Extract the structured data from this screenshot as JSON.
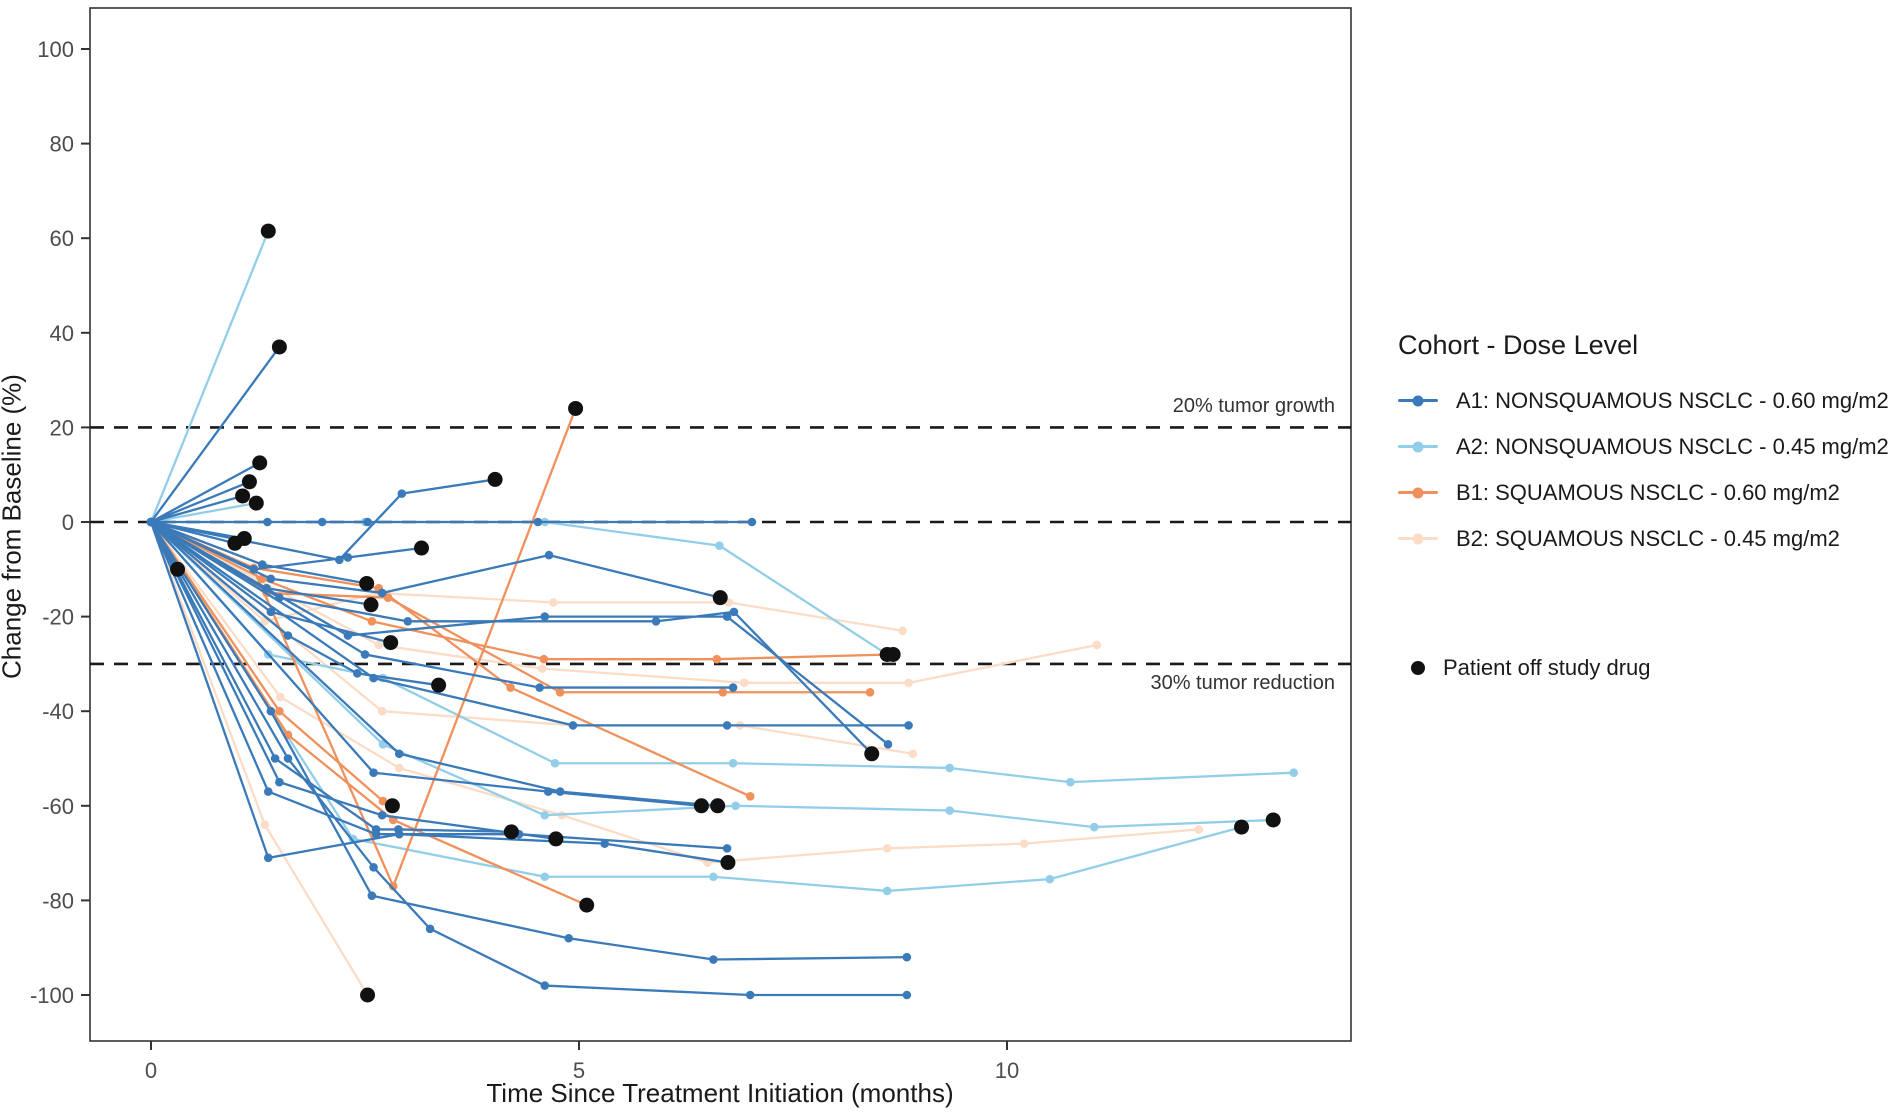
{
  "chart_data": {
    "type": "line",
    "title": "",
    "xlabel": "Time Since Treatment Initiation (months)",
    "ylabel": "Change from Baseline (%)",
    "x_ticks": [
      0,
      5,
      10
    ],
    "y_ticks": [
      -100,
      -80,
      -60,
      -40,
      -20,
      0,
      20,
      40,
      60,
      80,
      100
    ],
    "xlim": [
      -0.7,
      14.0
    ],
    "ylim": [
      -110,
      109
    ],
    "grid": false,
    "legend_position": "right",
    "reference_lines": [
      {
        "y": 20,
        "label": "20% tumor growth"
      },
      {
        "y": 0,
        "label": ""
      },
      {
        "y": -30,
        "label": "30% tumor reduction"
      }
    ],
    "annotations": {
      "growth": "20% tumor growth",
      "reduction": "30% tumor reduction"
    },
    "cohorts": {
      "A1": {
        "label": "A1: NONSQUAMOUS NSCLC - 0.60 mg/m2",
        "color": "#3B7AB9"
      },
      "A2": {
        "label": "A2: NONSQUAMOUS NSCLC - 0.45 mg/m2",
        "color": "#92CEE8"
      },
      "B1": {
        "label": "B1: SQUAMOUS NSCLC - 0.60 mg/m2",
        "color": "#F0915C"
      },
      "B2": {
        "label": "B2: SQUAMOUS NSCLC - 0.45 mg/m2",
        "color": "#FBDCC6"
      }
    },
    "off_study": {
      "label": "Patient off study drug",
      "color": "#111111"
    },
    "series": [
      {
        "cohort": "B2",
        "end": "dot",
        "points": [
          [
            0,
            0
          ],
          [
            1.33,
            -64
          ],
          [
            2.53,
            -100
          ]
        ]
      },
      {
        "cohort": "B2",
        "end": "marker",
        "points": [
          [
            0,
            0
          ],
          [
            1.33,
            -21
          ],
          [
            2.64,
            -15
          ],
          [
            4.7,
            -17
          ],
          [
            6.75,
            -17
          ],
          [
            8.78,
            -23
          ]
        ]
      },
      {
        "cohort": "B2",
        "end": "marker",
        "points": [
          [
            0,
            0
          ],
          [
            2.66,
            -26
          ],
          [
            4.57,
            -31
          ],
          [
            6.93,
            -34
          ],
          [
            8.85,
            -34
          ],
          [
            11.05,
            -26
          ]
        ]
      },
      {
        "cohort": "B2",
        "end": "marker",
        "points": [
          [
            0,
            0
          ],
          [
            2.7,
            -40
          ],
          [
            4.93,
            -43
          ],
          [
            6.88,
            -43
          ],
          [
            8.9,
            -49
          ]
        ]
      },
      {
        "cohort": "B2",
        "end": "marker",
        "points": [
          [
            0,
            0
          ],
          [
            1.51,
            -37
          ],
          [
            2.9,
            -52
          ],
          [
            4.8,
            -62
          ],
          [
            6.5,
            -72
          ],
          [
            8.6,
            -69
          ],
          [
            10.2,
            -68
          ],
          [
            12.24,
            -65
          ]
        ]
      },
      {
        "cohort": "A2",
        "end": "dot",
        "points": [
          [
            0,
            0
          ],
          [
            1.37,
            61.5
          ]
        ]
      },
      {
        "cohort": "A2",
        "end": "dot",
        "points": [
          [
            0,
            0
          ],
          [
            1.23,
            4
          ]
        ]
      },
      {
        "cohort": "A2",
        "end": "dot",
        "points": [
          [
            0,
            0
          ],
          [
            2.5,
            0
          ],
          [
            4.6,
            0
          ],
          [
            6.64,
            -5
          ],
          [
            8.6,
            -28
          ]
        ]
      },
      {
        "cohort": "A2",
        "end": "marker",
        "points": [
          [
            0,
            0
          ],
          [
            1.37,
            -28
          ],
          [
            2.71,
            -33
          ],
          [
            4.72,
            -51
          ],
          [
            6.8,
            -51
          ],
          [
            9.33,
            -52
          ],
          [
            10.74,
            -55
          ],
          [
            13.35,
            -53
          ]
        ]
      },
      {
        "cohort": "A2",
        "end": "dot",
        "points": [
          [
            0,
            0
          ],
          [
            2.71,
            -47
          ],
          [
            4.6,
            -62
          ],
          [
            6.83,
            -60
          ],
          [
            9.33,
            -61
          ],
          [
            11.02,
            -64.5
          ],
          [
            13.11,
            -63
          ]
        ]
      },
      {
        "cohort": "A2",
        "end": "dot",
        "points": [
          [
            0,
            0
          ],
          [
            2.36,
            -67
          ],
          [
            4.6,
            -75
          ],
          [
            6.57,
            -75
          ],
          [
            8.6,
            -78
          ],
          [
            10.5,
            -75.5
          ],
          [
            12.74,
            -64.5
          ]
        ]
      },
      {
        "cohort": "B1",
        "end": "dot",
        "points": [
          [
            0,
            0
          ],
          [
            1.2,
            -10
          ],
          [
            2.83,
            -77
          ],
          [
            4.96,
            24
          ]
        ]
      },
      {
        "cohort": "B1",
        "end": "dot",
        "points": [
          [
            0,
            0
          ],
          [
            1.3,
            -12
          ],
          [
            2.58,
            -21
          ],
          [
            4.59,
            -29
          ],
          [
            6.61,
            -29
          ],
          [
            8.67,
            -28
          ]
        ]
      },
      {
        "cohort": "B1",
        "end": "marker",
        "points": [
          [
            0,
            0
          ],
          [
            1.35,
            -15
          ],
          [
            2.77,
            -16
          ],
          [
            4.78,
            -36
          ],
          [
            6.68,
            -36
          ],
          [
            8.4,
            -36
          ]
        ]
      },
      {
        "cohort": "B1",
        "end": "marker",
        "points": [
          [
            0,
            0
          ],
          [
            1.2,
            -9.7
          ],
          [
            2.66,
            -14
          ],
          [
            4.2,
            -35
          ],
          [
            7.0,
            -58
          ]
        ]
      },
      {
        "cohort": "B1",
        "end": "dot",
        "points": [
          [
            0,
            0
          ],
          [
            1.5,
            -40
          ],
          [
            2.71,
            -59
          ],
          [
            2.82,
            -60
          ]
        ]
      },
      {
        "cohort": "B1",
        "end": "dot",
        "points": [
          [
            0,
            0
          ],
          [
            1.6,
            -45
          ],
          [
            2.83,
            -63
          ],
          [
            5.09,
            -81
          ]
        ]
      },
      {
        "cohort": "A1",
        "end": "dot",
        "points": [
          [
            0,
            0
          ],
          [
            1.5,
            37
          ]
        ]
      },
      {
        "cohort": "A1",
        "end": "dot",
        "points": [
          [
            0,
            0
          ],
          [
            1.27,
            12.5
          ]
        ]
      },
      {
        "cohort": "A1",
        "end": "dot",
        "points": [
          [
            0,
            0
          ],
          [
            1.15,
            8.5
          ]
        ]
      },
      {
        "cohort": "A1",
        "end": "dot",
        "points": [
          [
            0,
            0
          ],
          [
            1.07,
            5.5
          ]
        ]
      },
      {
        "cohort": "A1",
        "end": "dot",
        "points": [
          [
            0,
            0
          ],
          [
            0.31,
            -10
          ]
        ]
      },
      {
        "cohort": "A1",
        "end": "dot",
        "points": [
          [
            0,
            0
          ],
          [
            0.98,
            -4.5
          ]
        ]
      },
      {
        "cohort": "A1",
        "end": "dot",
        "points": [
          [
            0,
            0
          ],
          [
            1.09,
            -3.5
          ]
        ]
      },
      {
        "cohort": "A1",
        "end": "dot",
        "points": [
          [
            0,
            0
          ],
          [
            1.2,
            -10
          ],
          [
            2.3,
            -7.5
          ],
          [
            3.16,
            -5.5
          ]
        ]
      },
      {
        "cohort": "A1",
        "end": "marker",
        "points": [
          [
            0,
            0
          ],
          [
            1.36,
            0
          ],
          [
            2.0,
            0
          ],
          [
            2.53,
            0
          ],
          [
            4.52,
            0
          ],
          [
            7.02,
            0
          ]
        ]
      },
      {
        "cohort": "A1",
        "end": "dot",
        "points": [
          [
            0,
            0
          ],
          [
            2.2,
            -8
          ],
          [
            2.93,
            6
          ],
          [
            4.02,
            9
          ]
        ]
      },
      {
        "cohort": "A1",
        "end": "dot",
        "points": [
          [
            0,
            0
          ],
          [
            1.3,
            -9
          ],
          [
            2.52,
            -13
          ]
        ]
      },
      {
        "cohort": "A1",
        "end": "dot",
        "points": [
          [
            0,
            0
          ],
          [
            1.35,
            -14
          ],
          [
            2.57,
            -17.5
          ]
        ]
      },
      {
        "cohort": "A1",
        "end": "dot",
        "points": [
          [
            0,
            0
          ],
          [
            1.4,
            -19
          ],
          [
            2.8,
            -25.5
          ]
        ]
      },
      {
        "cohort": "A1",
        "end": "dot",
        "points": [
          [
            0,
            0
          ],
          [
            1.6,
            -24
          ],
          [
            2.41,
            -32
          ],
          [
            3.36,
            -34.5
          ]
        ]
      },
      {
        "cohort": "A1",
        "end": "dot",
        "points": [
          [
            0,
            0
          ],
          [
            1.4,
            -12
          ],
          [
            2.7,
            -15
          ],
          [
            4.65,
            -7
          ],
          [
            6.65,
            -16
          ]
        ]
      },
      {
        "cohort": "A1",
        "end": "dot",
        "points": [
          [
            0,
            0
          ],
          [
            1.5,
            -16
          ],
          [
            3.0,
            -21
          ],
          [
            5.9,
            -21
          ],
          [
            6.81,
            -19
          ],
          [
            8.42,
            -49
          ]
        ]
      },
      {
        "cohort": "A1",
        "end": "marker",
        "points": [
          [
            0,
            0
          ],
          [
            2.3,
            -24
          ],
          [
            4.6,
            -20
          ],
          [
            6.73,
            -20
          ],
          [
            8.61,
            -47
          ]
        ]
      },
      {
        "cohort": "A1",
        "end": "marker",
        "points": [
          [
            0,
            0
          ],
          [
            2.5,
            -28
          ],
          [
            4.54,
            -35
          ],
          [
            6.8,
            -35
          ]
        ]
      },
      {
        "cohort": "A1",
        "end": "marker",
        "points": [
          [
            0,
            0
          ],
          [
            2.6,
            -33
          ],
          [
            4.93,
            -43
          ],
          [
            6.73,
            -43
          ],
          [
            8.85,
            -43
          ]
        ]
      },
      {
        "cohort": "A1",
        "end": "dot",
        "points": [
          [
            0,
            0
          ],
          [
            2.6,
            -53
          ],
          [
            4.64,
            -57
          ],
          [
            6.43,
            -60
          ]
        ]
      },
      {
        "cohort": "A1",
        "end": "dot",
        "points": [
          [
            0,
            0
          ],
          [
            2.9,
            -49
          ],
          [
            4.78,
            -57
          ],
          [
            6.62,
            -60
          ]
        ]
      },
      {
        "cohort": "A1",
        "end": "dot",
        "points": [
          [
            0,
            0
          ],
          [
            1.45,
            -50
          ],
          [
            2.63,
            -65
          ],
          [
            2.89,
            -65
          ],
          [
            4.21,
            -65.5
          ]
        ]
      },
      {
        "cohort": "A1",
        "end": "dot",
        "points": [
          [
            0,
            0
          ],
          [
            1.5,
            -55
          ],
          [
            2.7,
            -62
          ],
          [
            4.73,
            -67
          ]
        ]
      },
      {
        "cohort": "A1",
        "end": "marker",
        "points": [
          [
            0,
            0
          ],
          [
            1.37,
            -57
          ],
          [
            2.63,
            -66
          ],
          [
            4.3,
            -66
          ],
          [
            6.73,
            -69
          ]
        ]
      },
      {
        "cohort": "A1",
        "end": "dot",
        "points": [
          [
            0,
            0
          ],
          [
            1.37,
            -71
          ],
          [
            2.9,
            -66
          ],
          [
            5.3,
            -68
          ],
          [
            6.74,
            -72
          ]
        ]
      },
      {
        "cohort": "A1",
        "end": "marker",
        "points": [
          [
            0,
            0
          ],
          [
            1.4,
            -40
          ],
          [
            2.58,
            -79
          ],
          [
            4.88,
            -88
          ],
          [
            6.57,
            -92.5
          ],
          [
            8.83,
            -92
          ]
        ]
      },
      {
        "cohort": "A1",
        "end": "marker",
        "points": [
          [
            0,
            0
          ],
          [
            1.6,
            -50
          ],
          [
            2.6,
            -73
          ],
          [
            3.26,
            -86
          ],
          [
            4.6,
            -98
          ],
          [
            7.0,
            -100
          ],
          [
            8.83,
            -100
          ]
        ]
      }
    ]
  },
  "legend": {
    "title": "Cohort - Dose Level"
  }
}
